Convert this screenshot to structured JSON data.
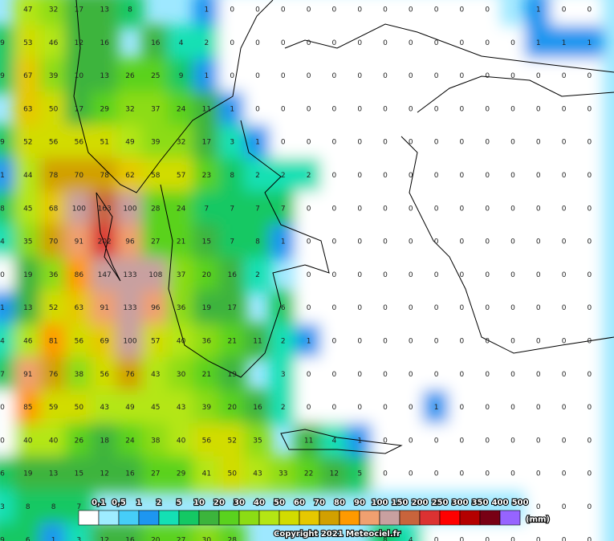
{
  "legend": {
    "unit": "(mm)",
    "thresholds": [
      {
        "value": 0.1,
        "label": "0,1"
      },
      {
        "value": 0.5,
        "label": "0,5"
      },
      1,
      2,
      5,
      10,
      20,
      30,
      40,
      50,
      60,
      70,
      80,
      90,
      100,
      150,
      200,
      250,
      300,
      350,
      400,
      500
    ],
    "colors": [
      "#ffffff",
      "#9eecff",
      "#46cdf8",
      "#1e96f0",
      "#14e0b4",
      "#14c864",
      "#3cb43c",
      "#5ad21e",
      "#8cdc14",
      "#b4e614",
      "#d2dc00",
      "#e6c800",
      "#d2a000",
      "#ff9a00",
      "#f0a070",
      "#c8a0a0",
      "#c8643c",
      "#dc3232",
      "#ff0000",
      "#b40000",
      "#780014",
      "#9664ff"
    ]
  },
  "copyright": "Copyright 2021 Meteociel.fr",
  "grid": [
    [
      null,
      47,
      32,
      17,
      13,
      8,
      null,
      null,
      1,
      0,
      0,
      0,
      0,
      0,
      0,
      0,
      0,
      0,
      0,
      0,
      null,
      1,
      0,
      0
    ],
    [
      9,
      53,
      46,
      12,
      16,
      null,
      16,
      4,
      2,
      0,
      0,
      0,
      0,
      0,
      0,
      0,
      0,
      0,
      0,
      0,
      0,
      1,
      1,
      1
    ],
    [
      9,
      67,
      39,
      10,
      13,
      26,
      25,
      9,
      1,
      0,
      0,
      0,
      0,
      0,
      0,
      0,
      0,
      0,
      0,
      0,
      0,
      0,
      0,
      0
    ],
    [
      null,
      63,
      50,
      17,
      29,
      32,
      37,
      24,
      11,
      1,
      0,
      0,
      0,
      0,
      0,
      0,
      0,
      0,
      0,
      0,
      0,
      0,
      0,
      0
    ],
    [
      9,
      52,
      56,
      56,
      51,
      49,
      39,
      32,
      17,
      3,
      1,
      0,
      0,
      0,
      0,
      0,
      0,
      0,
      0,
      0,
      0,
      0,
      0,
      0
    ],
    [
      1,
      44,
      78,
      70,
      78,
      62,
      58,
      57,
      23,
      8,
      2,
      2,
      2,
      0,
      0,
      0,
      0,
      0,
      0,
      0,
      0,
      0,
      0,
      0
    ],
    [
      8,
      45,
      68,
      100,
      163,
      100,
      28,
      24,
      7,
      7,
      7,
      7,
      0,
      0,
      0,
      0,
      0,
      0,
      0,
      0,
      0,
      0,
      0,
      0
    ],
    [
      4,
      35,
      70,
      91,
      202,
      96,
      27,
      21,
      15,
      7,
      8,
      1,
      0,
      0,
      0,
      0,
      0,
      0,
      0,
      0,
      0,
      0,
      0,
      0
    ],
    [
      0,
      19,
      36,
      86,
      147,
      133,
      108,
      37,
      20,
      16,
      2,
      null,
      0,
      0,
      0,
      0,
      0,
      0,
      0,
      0,
      0,
      0,
      0,
      0
    ],
    [
      1,
      13,
      52,
      63,
      91,
      133,
      96,
      36,
      19,
      17,
      null,
      6,
      0,
      0,
      0,
      0,
      0,
      0,
      0,
      0,
      0,
      0,
      0,
      0
    ],
    [
      4,
      46,
      81,
      56,
      69,
      100,
      57,
      40,
      36,
      21,
      11,
      2,
      1,
      0,
      0,
      0,
      0,
      0,
      0,
      0,
      0,
      0,
      0,
      0
    ],
    [
      7,
      91,
      76,
      38,
      56,
      76,
      43,
      30,
      21,
      19,
      null,
      3,
      0,
      0,
      0,
      0,
      0,
      0,
      0,
      0,
      0,
      0,
      0,
      0
    ],
    [
      0,
      85,
      59,
      50,
      43,
      49,
      45,
      43,
      39,
      20,
      16,
      2,
      0,
      0,
      0,
      0,
      0,
      1,
      0,
      0,
      0,
      0,
      0,
      0
    ],
    [
      0,
      40,
      40,
      26,
      18,
      24,
      38,
      40,
      56,
      52,
      35,
      null,
      11,
      4,
      1,
      0,
      0,
      0,
      0,
      0,
      0,
      0,
      0,
      0
    ],
    [
      6,
      19,
      13,
      15,
      12,
      16,
      27,
      29,
      41,
      50,
      43,
      33,
      22,
      12,
      5,
      0,
      0,
      0,
      0,
      0,
      0,
      0,
      0,
      0
    ],
    [
      3,
      8,
      8,
      7,
      null,
      null,
      null,
      null,
      null,
      null,
      null,
      null,
      null,
      null,
      null,
      null,
      null,
      null,
      null,
      null,
      null,
      0,
      0,
      0
    ],
    [
      9,
      6,
      1,
      3,
      12,
      16,
      20,
      27,
      30,
      28,
      null,
      null,
      null,
      null,
      null,
      8,
      4,
      0,
      0,
      0,
      0,
      0,
      0,
      0
    ]
  ]
}
